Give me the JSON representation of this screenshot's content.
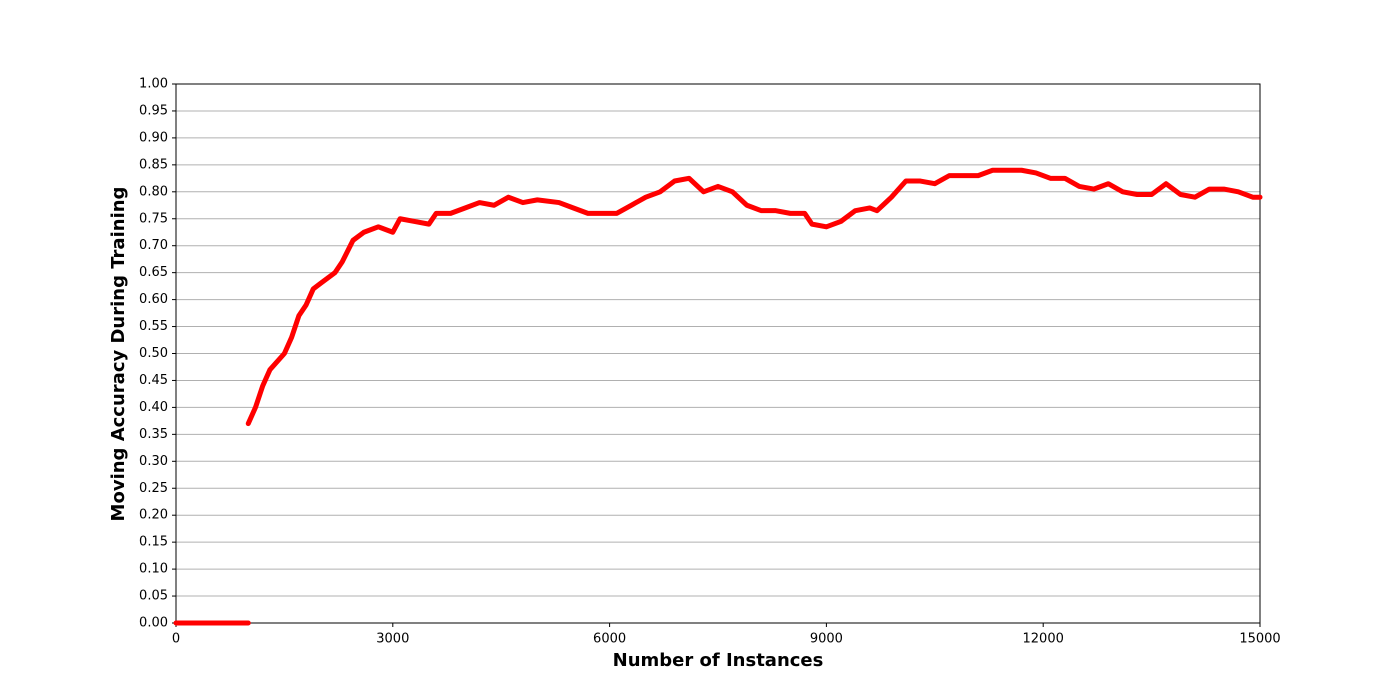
{
  "chart_data": {
    "type": "line",
    "xlabel": "Number of Instances",
    "ylabel": "Moving Accuracy During Training",
    "x": [
      0,
      1000,
      1000,
      1000,
      1100,
      1200,
      1300,
      1500,
      1600,
      1700,
      1800,
      1900,
      2000,
      2200,
      2300,
      2450,
      2600,
      2800,
      3000,
      3100,
      3300,
      3500,
      3600,
      3800,
      4000,
      4200,
      4400,
      4600,
      4800,
      5000,
      5300,
      5500,
      5700,
      5900,
      6100,
      6300,
      6500,
      6700,
      6900,
      7100,
      7300,
      7500,
      7700,
      7900,
      8100,
      8300,
      8500,
      8700,
      8800,
      9000,
      9200,
      9400,
      9600,
      9700,
      9900,
      10100,
      10300,
      10500,
      10700,
      10900,
      11100,
      11300,
      11500,
      11700,
      11900,
      12100,
      12300,
      12500,
      12700,
      12900,
      13100,
      13300,
      13500,
      13700,
      13900,
      14100,
      14300,
      14500,
      14700,
      14900,
      15000
    ],
    "series": [
      {
        "color": "#ff0000",
        "values": [
          0,
          0,
          null,
          0.37,
          0.4,
          0.44,
          0.47,
          0.5,
          0.53,
          0.57,
          0.59,
          0.62,
          0.63,
          0.65,
          0.67,
          0.71,
          0.725,
          0.735,
          0.725,
          0.75,
          0.745,
          0.74,
          0.76,
          0.76,
          0.77,
          0.78,
          0.775,
          0.79,
          0.78,
          0.785,
          0.78,
          0.77,
          0.76,
          0.76,
          0.76,
          0.775,
          0.79,
          0.8,
          0.82,
          0.825,
          0.8,
          0.81,
          0.8,
          0.775,
          0.765,
          0.765,
          0.76,
          0.76,
          0.74,
          0.735,
          0.745,
          0.765,
          0.77,
          0.765,
          0.79,
          0.82,
          0.82,
          0.815,
          0.83,
          0.83,
          0.83,
          0.84,
          0.84,
          0.84,
          0.835,
          0.825,
          0.825,
          0.81,
          0.805,
          0.815,
          0.8,
          0.795,
          0.795,
          0.815,
          0.795,
          0.79,
          0.805,
          0.805,
          0.8,
          0.79,
          0.79
        ]
      }
    ],
    "xlim": [
      0,
      15000
    ],
    "xticks": [
      0,
      3000,
      6000,
      9000,
      12000,
      15000
    ],
    "ylim": [
      0,
      1
    ],
    "yticks": [
      {
        "value": 0,
        "label": "0.00"
      },
      {
        "value": 0.05,
        "label": "0.05"
      },
      {
        "value": 0.1,
        "label": "0.10"
      },
      {
        "value": 0.15,
        "label": "0.15"
      },
      {
        "value": 0.2,
        "label": "0.20"
      },
      {
        "value": 0.25,
        "label": "0.25"
      },
      {
        "value": 0.3,
        "label": "0.30"
      },
      {
        "value": 0.35,
        "label": "0.35"
      },
      {
        "value": 0.4,
        "label": "0.40"
      },
      {
        "value": 0.45,
        "label": "0.45"
      },
      {
        "value": 0.5,
        "label": "0.50"
      },
      {
        "value": 0.55,
        "label": "0.55"
      },
      {
        "value": 0.6,
        "label": "0.60"
      },
      {
        "value": 0.65,
        "label": "0.65"
      },
      {
        "value": 0.7,
        "label": "0.70"
      },
      {
        "value": 0.75,
        "label": "0.75"
      },
      {
        "value": 0.8,
        "label": "0.80"
      },
      {
        "value": 0.85,
        "label": "0.85"
      },
      {
        "value": 0.9,
        "label": "0.90"
      },
      {
        "value": 0.95,
        "label": "0.95"
      },
      {
        "value": 1,
        "label": "1.00"
      }
    ],
    "grid": true
  }
}
